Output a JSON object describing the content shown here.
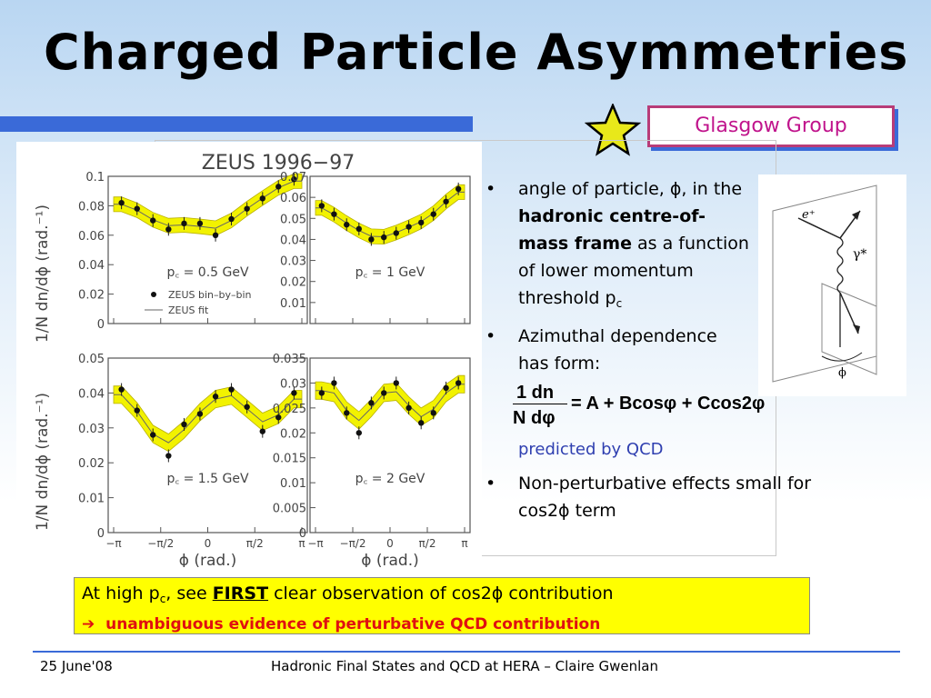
{
  "title": "Charged Particle Asymmetries",
  "group_label": "Glasgow Group",
  "bullets": {
    "b1": {
      "pre": "angle of particle, ",
      "phi": "ϕ",
      "mid": ", in the ",
      "bold": "hadronic centre-of-mass frame",
      "post": " as a function of lower momentum threshold p",
      "sub": "c"
    },
    "b2": "Azimuthal dependence has form:",
    "formula": {
      "num": "1  dn",
      "den": "N  dφ",
      "rhs": "= A + Bcosφ + Ccos2φ"
    },
    "qcd": "predicted by QCD",
    "b3": "Non-perturbative effects small for cos2ϕ term",
    "dot": "•"
  },
  "conclusion": {
    "line1_pre": "At high p",
    "line1_sub": "c",
    "line1_mid": ", see ",
    "line1_first": "FIRST",
    "line1_post": " clear observation of cos2ϕ contribution",
    "arrow": "➔",
    "line2": "unambiguous evidence of perturbative QCD contribution"
  },
  "footer": {
    "date": "25 June'08",
    "center": "Hadronic Final States and QCD at HERA – Claire Gwenlan"
  },
  "inset": {
    "eplus": "e⁺",
    "gamma": "γ*",
    "phi": "ϕ"
  },
  "chart_data": {
    "type": "scatter",
    "title": "ZEUS 1996−97",
    "ylabel": "1/N dn/dϕ (rad.⁻¹)",
    "xlabel": "ϕ (rad.)",
    "xticks": [
      "−π",
      "−π/2",
      "0",
      "π/2",
      "π"
    ],
    "legend": {
      "points": "ZEUS bin–by–bin",
      "line": "ZEUS fit"
    },
    "panels": [
      {
        "label": "p꜀ = 0.5 GeV",
        "ylim": [
          0,
          0.1
        ],
        "yticks": [
          "0.1",
          "0.08",
          "0.06",
          "0.04",
          "0.02",
          "0"
        ],
        "x": [
          -2.88,
          -2.36,
          -1.83,
          -1.31,
          -0.79,
          -0.26,
          0.26,
          0.79,
          1.31,
          1.83,
          2.36,
          2.88
        ],
        "y": [
          0.082,
          0.078,
          0.07,
          0.064,
          0.068,
          0.068,
          0.06,
          0.071,
          0.078,
          0.085,
          0.093,
          0.098
        ]
      },
      {
        "label": "p꜀ = 1 GeV",
        "ylim": [
          0,
          0.07
        ],
        "yticks": [
          "0.07",
          "0.06",
          "0.05",
          "0.04",
          "0.03",
          "0.02",
          "0.01"
        ],
        "x": [
          -2.88,
          -2.36,
          -1.83,
          -1.31,
          -0.79,
          -0.26,
          0.26,
          0.79,
          1.31,
          1.83,
          2.36,
          2.88
        ],
        "y": [
          0.056,
          0.052,
          0.047,
          0.045,
          0.04,
          0.041,
          0.043,
          0.046,
          0.048,
          0.052,
          0.058,
          0.064
        ]
      },
      {
        "label": "p꜀ = 1.5 GeV",
        "ylim": [
          0,
          0.05
        ],
        "yticks": [
          "0.05",
          "0.04",
          "0.03",
          "0.02",
          "0.01",
          "0"
        ],
        "x": [
          -2.88,
          -2.36,
          -1.83,
          -1.31,
          -0.79,
          -0.26,
          0.26,
          0.79,
          1.31,
          1.83,
          2.36,
          2.88
        ],
        "y": [
          0.041,
          0.035,
          0.028,
          0.022,
          0.031,
          0.034,
          0.039,
          0.041,
          0.036,
          0.029,
          0.033,
          0.04
        ]
      },
      {
        "label": "p꜀ = 2 GeV",
        "ylim": [
          0,
          0.035
        ],
        "yticks": [
          "0.035",
          "0.03",
          "0.025",
          "0.02",
          "0.015",
          "0.01",
          "0.005",
          "0"
        ],
        "x": [
          -2.88,
          -2.36,
          -1.83,
          -1.31,
          -0.79,
          -0.26,
          0.26,
          0.79,
          1.31,
          1.83,
          2.36,
          2.88
        ],
        "y": [
          0.028,
          0.03,
          0.024,
          0.02,
          0.026,
          0.028,
          0.03,
          0.025,
          0.022,
          0.024,
          0.029,
          0.03
        ]
      }
    ]
  }
}
